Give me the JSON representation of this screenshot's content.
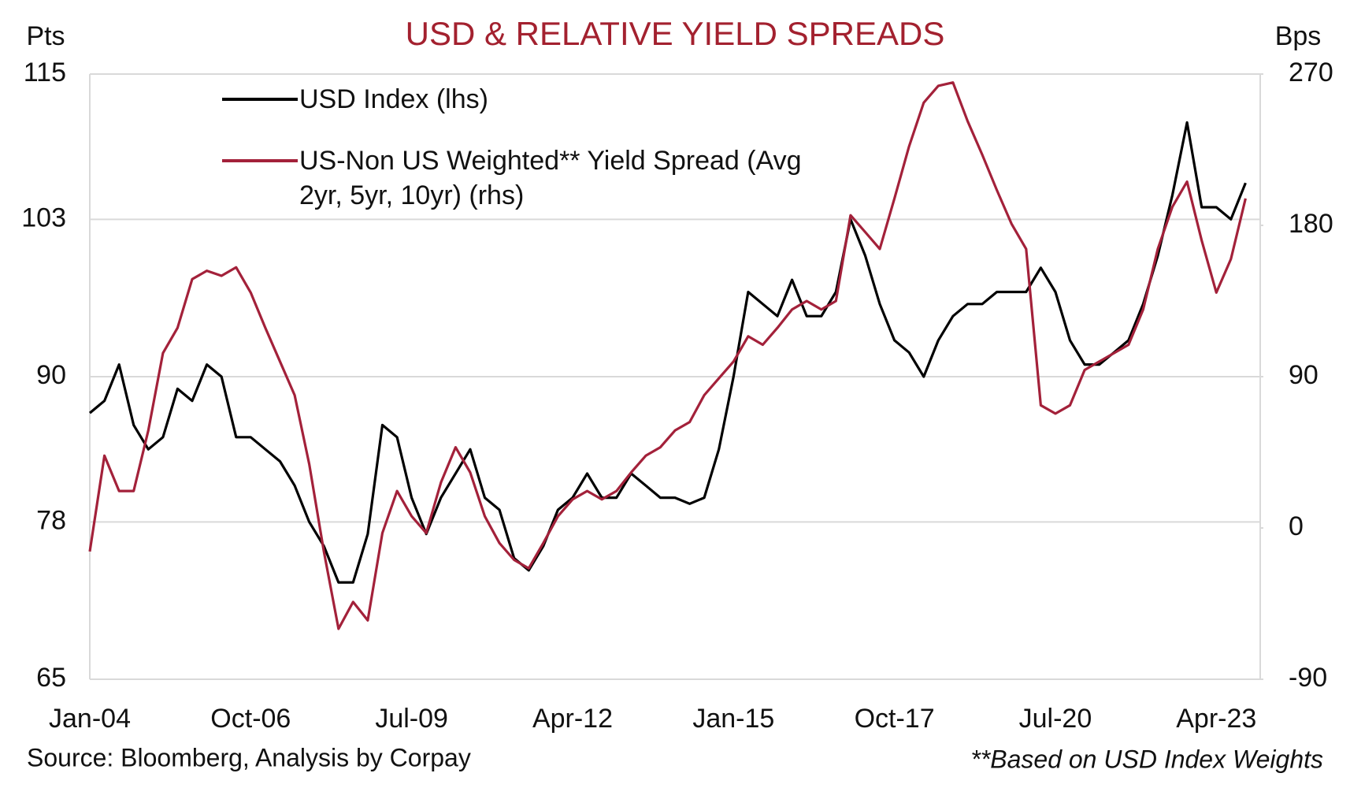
{
  "chart_data": {
    "type": "line",
    "title": "USD & RELATIVE YIELD SPREADS",
    "left_axis_label": "Pts",
    "right_axis_label": "Bps",
    "source": "Source: Bloomberg, Analysis by Corpay",
    "note": "**Based on USD Index Weights",
    "title_color": "#a3212f",
    "grid": true,
    "categories": [
      "Jan-04",
      null,
      null,
      null,
      null,
      null,
      null,
      null,
      null,
      null,
      null,
      "Oct-06",
      null,
      null,
      null,
      null,
      null,
      null,
      null,
      null,
      null,
      null,
      "Jul-09",
      null,
      null,
      null,
      null,
      null,
      null,
      null,
      null,
      null,
      null,
      "Apr-12",
      null,
      null,
      null,
      null,
      null,
      null,
      null,
      null,
      null,
      null,
      "Jan-15",
      null,
      null,
      null,
      null,
      null,
      null,
      null,
      null,
      null,
      null,
      "Oct-17",
      null,
      null,
      null,
      null,
      null,
      null,
      null,
      null,
      null,
      null,
      "Jul-20",
      null,
      null,
      null,
      null,
      null,
      null,
      null,
      null,
      null,
      null,
      "Apr-23",
      null,
      null
    ],
    "ylim": [
      65,
      115
    ],
    "yticks": [
      65,
      78,
      90,
      103,
      115
    ],
    "y2lim": [
      -90,
      270
    ],
    "y2ticks": [
      -90,
      0,
      90,
      180,
      270
    ],
    "series": [
      {
        "name": "USD Index (lhs)",
        "color": "#000000",
        "axis": "y",
        "values": [
          87,
          88,
          91,
          86,
          84,
          85,
          89,
          88,
          91,
          90,
          85,
          85,
          84,
          83,
          81,
          78,
          76,
          73,
          73,
          77,
          86,
          85,
          80,
          77,
          80,
          82,
          84,
          80,
          79,
          75,
          74,
          76,
          79,
          80,
          82,
          80,
          80,
          82,
          81,
          80,
          80,
          79.5,
          80,
          84,
          90,
          97,
          96,
          95,
          98,
          95,
          95,
          97,
          103,
          100,
          96,
          93,
          92,
          90,
          93,
          95,
          96,
          96,
          97,
          97,
          97,
          99,
          97,
          93,
          91,
          91,
          92,
          93,
          96,
          100,
          105,
          111,
          104,
          104,
          103,
          106
        ]
      },
      {
        "name": "US-Non US Weighted** Yield Spread (Avg 2yr, 5yr, 10yr) (rhs)",
        "color": "#a3213a",
        "axis": "y2",
        "values": [
          -14,
          43,
          22,
          22,
          58,
          104,
          119,
          148,
          153,
          150,
          155,
          140,
          119,
          99,
          79,
          38,
          -14,
          -60,
          -44,
          -55,
          -3,
          22,
          7,
          -3,
          27,
          48,
          33,
          7,
          -9,
          -19,
          -24,
          -9,
          7,
          17,
          22,
          17,
          22,
          33,
          43,
          48,
          58,
          63,
          79,
          89,
          99,
          114,
          109,
          119,
          130,
          135,
          130,
          135,
          186,
          176,
          166,
          196,
          227,
          253,
          263,
          265,
          242,
          222,
          201,
          181,
          166,
          73,
          68,
          73,
          94,
          99,
          104,
          109,
          130,
          166,
          191,
          206,
          171,
          140,
          160,
          196
        ]
      }
    ]
  }
}
